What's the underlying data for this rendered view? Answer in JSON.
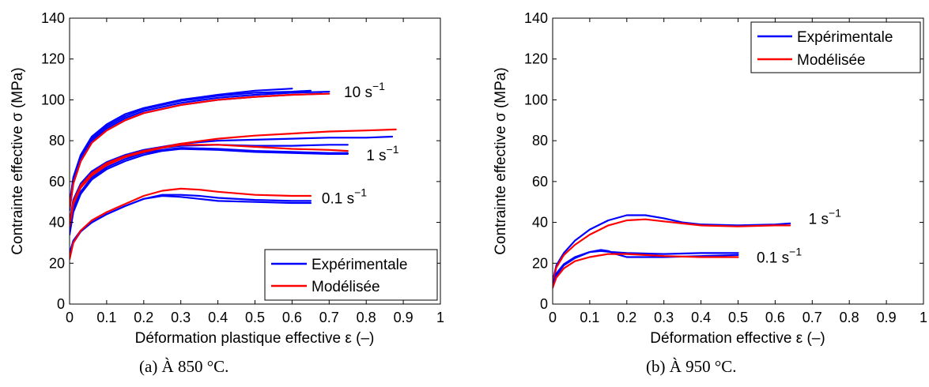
{
  "chart_data": [
    {
      "type": "line",
      "caption": "(a) À 850 °C.",
      "xlabel": "Déformation plastique effective ε (–)",
      "ylabel": "Contrainte effective σ (MPa)",
      "xlim": [
        0,
        1
      ],
      "ylim": [
        0,
        140
      ],
      "xticks": [
        "0",
        "0.1",
        "0.2",
        "0.3",
        "0.4",
        "0.5",
        "0.6",
        "0.7",
        "0.8",
        "0.9",
        "1"
      ],
      "yticks": [
        "0",
        "20",
        "40",
        "60",
        "80",
        "100",
        "120",
        "140"
      ],
      "grid": false,
      "legend": {
        "position": "bottom-right",
        "entries": [
          {
            "name": "Expérimentale",
            "color": "#0000ff"
          },
          {
            "name": "Modélisée",
            "color": "#ff0000"
          }
        ]
      },
      "annotations": [
        {
          "text": "10 s",
          "sup": "−1",
          "x": 0.74,
          "y": 104
        },
        {
          "text": "1 s",
          "sup": "−1",
          "x": 0.8,
          "y": 73
        },
        {
          "text": "0.1 s",
          "sup": "−1",
          "x": 0.68,
          "y": 52
        }
      ],
      "series": [
        {
          "color": "#0000ff",
          "x": [
            0,
            0.01,
            0.03,
            0.06,
            0.1,
            0.15,
            0.2,
            0.3,
            0.4,
            0.5,
            0.6
          ],
          "y": [
            49,
            62,
            73,
            82,
            88,
            93,
            96,
            100,
            102.5,
            104.5,
            105.5
          ]
        },
        {
          "color": "#0000ff",
          "x": [
            0,
            0.01,
            0.03,
            0.06,
            0.1,
            0.15,
            0.2,
            0.3,
            0.4,
            0.5,
            0.6,
            0.65
          ],
          "y": [
            48,
            61,
            72,
            81,
            87,
            92,
            95.5,
            99.5,
            102,
            103.5,
            104,
            104.5
          ]
        },
        {
          "color": "#0000ff",
          "x": [
            0,
            0.01,
            0.03,
            0.06,
            0.1,
            0.15,
            0.2,
            0.3,
            0.4,
            0.5,
            0.6,
            0.7
          ],
          "y": [
            47,
            60,
            71,
            80,
            86,
            91,
            94.5,
            98.5,
            101,
            102.5,
            103.5,
            104
          ]
        },
        {
          "color": "#0000ff",
          "x": [
            0,
            0.01,
            0.03,
            0.06,
            0.1,
            0.15,
            0.2,
            0.3,
            0.4,
            0.5,
            0.6,
            0.68
          ],
          "y": [
            46,
            59,
            70,
            79,
            85,
            90,
            93.5,
            97.5,
            100,
            101.5,
            102.5,
            103
          ]
        },
        {
          "color": "#ff0000",
          "x": [
            0,
            0.01,
            0.03,
            0.06,
            0.1,
            0.15,
            0.2,
            0.3,
            0.4,
            0.5,
            0.6,
            0.7
          ],
          "y": [
            47,
            59,
            70,
            79,
            85,
            90,
            93.5,
            97.5,
            100,
            101.5,
            102.5,
            103
          ]
        },
        {
          "color": "#0000ff",
          "x": [
            0,
            0.01,
            0.03,
            0.06,
            0.1,
            0.15,
            0.2,
            0.25,
            0.3,
            0.4,
            0.5,
            0.6,
            0.7,
            0.75
          ],
          "y": [
            38,
            49,
            57,
            64,
            68.5,
            72,
            74.5,
            76.5,
            77.5,
            78,
            77.5,
            77.5,
            78,
            78
          ]
        },
        {
          "color": "#0000ff",
          "x": [
            0,
            0.01,
            0.03,
            0.06,
            0.1,
            0.15,
            0.2,
            0.25,
            0.3,
            0.4,
            0.5,
            0.6,
            0.7,
            0.75
          ],
          "y": [
            36,
            47,
            55,
            62,
            67,
            71,
            74,
            75.5,
            76.5,
            76,
            75,
            74.5,
            74,
            74
          ]
        },
        {
          "color": "#0000ff",
          "x": [
            0,
            0.01,
            0.03,
            0.06,
            0.1,
            0.15,
            0.2,
            0.25,
            0.3,
            0.4,
            0.5,
            0.6,
            0.7,
            0.75
          ],
          "y": [
            34,
            45,
            54,
            61,
            66,
            70,
            73,
            75,
            76,
            75.5,
            74.5,
            74,
            73.5,
            73.5
          ]
        },
        {
          "color": "#0000ff",
          "x": [
            0,
            0.01,
            0.03,
            0.06,
            0.1,
            0.15,
            0.2,
            0.3,
            0.4,
            0.5,
            0.6,
            0.7,
            0.8,
            0.87
          ],
          "y": [
            40,
            51,
            59,
            65,
            69.5,
            73,
            75.5,
            78.5,
            80,
            80.5,
            81,
            81.5,
            81.5,
            82
          ]
        },
        {
          "color": "#ff0000",
          "x": [
            0,
            0.01,
            0.03,
            0.06,
            0.1,
            0.15,
            0.2,
            0.25,
            0.3,
            0.4,
            0.5,
            0.6,
            0.7,
            0.75
          ],
          "y": [
            38,
            49,
            57,
            63,
            68,
            72,
            74.5,
            76.5,
            78,
            78,
            77,
            76,
            75.5,
            75
          ]
        },
        {
          "color": "#ff0000",
          "x": [
            0,
            0.01,
            0.03,
            0.06,
            0.1,
            0.15,
            0.2,
            0.3,
            0.4,
            0.5,
            0.6,
            0.7,
            0.8,
            0.88
          ],
          "y": [
            39,
            50,
            58,
            64,
            69,
            72.5,
            75,
            78.5,
            81,
            82.5,
            83.5,
            84.5,
            85,
            85.5
          ]
        },
        {
          "color": "#0000ff",
          "x": [
            0,
            0.01,
            0.03,
            0.06,
            0.1,
            0.15,
            0.2,
            0.25,
            0.3,
            0.35,
            0.4,
            0.5,
            0.6,
            0.65
          ],
          "y": [
            25,
            31,
            36,
            40,
            44,
            48,
            51.5,
            53,
            52.5,
            51.5,
            50.5,
            50,
            49.5,
            49.5
          ]
        },
        {
          "color": "#0000ff",
          "x": [
            0,
            0.01,
            0.03,
            0.06,
            0.1,
            0.15,
            0.2,
            0.25,
            0.3,
            0.35,
            0.4,
            0.5,
            0.6,
            0.65
          ],
          "y": [
            24,
            30,
            35.5,
            40,
            44,
            48,
            51.5,
            53.5,
            53.5,
            53,
            52,
            51,
            50.5,
            50.5
          ]
        },
        {
          "color": "#ff0000",
          "x": [
            0,
            0.01,
            0.03,
            0.06,
            0.1,
            0.15,
            0.2,
            0.25,
            0.3,
            0.35,
            0.4,
            0.5,
            0.6,
            0.65
          ],
          "y": [
            22,
            30,
            36,
            41,
            45,
            49,
            53,
            55.5,
            56.5,
            56,
            55,
            53.5,
            53,
            53
          ]
        }
      ]
    },
    {
      "type": "line",
      "caption": "(b) À 950 °C.",
      "xlabel": "Déformation effective ε (–)",
      "ylabel": "Contrainte effective σ (MPa)",
      "xlim": [
        0,
        1
      ],
      "ylim": [
        0,
        140
      ],
      "xticks": [
        "0",
        "0.1",
        "0.2",
        "0.3",
        "0.4",
        "0.5",
        "0.6",
        "0.7",
        "0.8",
        "0.9",
        "1"
      ],
      "yticks": [
        "0",
        "20",
        "40",
        "60",
        "80",
        "100",
        "120",
        "140"
      ],
      "grid": false,
      "legend": {
        "position": "top-right",
        "entries": [
          {
            "name": "Expérimentale",
            "color": "#0000ff"
          },
          {
            "name": "Modélisée",
            "color": "#ff0000"
          }
        ]
      },
      "annotations": [
        {
          "text": "1 s",
          "sup": "−1",
          "x": 0.69,
          "y": 42
        },
        {
          "text": "0.1 s",
          "sup": "−1",
          "x": 0.55,
          "y": 23
        }
      ],
      "series": [
        {
          "color": "#0000ff",
          "x": [
            0,
            0.01,
            0.03,
            0.06,
            0.1,
            0.15,
            0.2,
            0.25,
            0.3,
            0.35,
            0.4,
            0.5,
            0.6,
            0.64
          ],
          "y": [
            11,
            19,
            25,
            31,
            36.5,
            41,
            43.5,
            43.5,
            42,
            40,
            39,
            38.5,
            39,
            39.5
          ]
        },
        {
          "color": "#ff0000",
          "x": [
            0,
            0.01,
            0.03,
            0.06,
            0.1,
            0.15,
            0.2,
            0.25,
            0.3,
            0.35,
            0.4,
            0.5,
            0.6,
            0.64
          ],
          "y": [
            10,
            18,
            24,
            29,
            34,
            38.5,
            41,
            41.5,
            40.5,
            39.5,
            38.5,
            38,
            38.5,
            38.5
          ]
        },
        {
          "color": "#0000ff",
          "x": [
            0,
            0.01,
            0.03,
            0.06,
            0.1,
            0.13,
            0.15,
            0.17,
            0.2,
            0.25,
            0.3,
            0.4,
            0.5
          ],
          "y": [
            8,
            14,
            19,
            22.5,
            25.5,
            26.5,
            26,
            24.5,
            23,
            23,
            23,
            23.5,
            24
          ]
        },
        {
          "color": "#0000ff",
          "x": [
            0,
            0.01,
            0.03,
            0.06,
            0.1,
            0.13,
            0.16,
            0.2,
            0.3,
            0.4,
            0.5
          ],
          "y": [
            9,
            15,
            19.5,
            23,
            25.5,
            26,
            25.5,
            25,
            24.5,
            25,
            25
          ]
        },
        {
          "color": "#ff0000",
          "x": [
            0,
            0.01,
            0.03,
            0.06,
            0.1,
            0.15,
            0.2,
            0.25,
            0.3,
            0.4,
            0.5
          ],
          "y": [
            8,
            13,
            17.5,
            21,
            23,
            24.5,
            24.5,
            24,
            23.5,
            23,
            23
          ]
        }
      ]
    }
  ]
}
